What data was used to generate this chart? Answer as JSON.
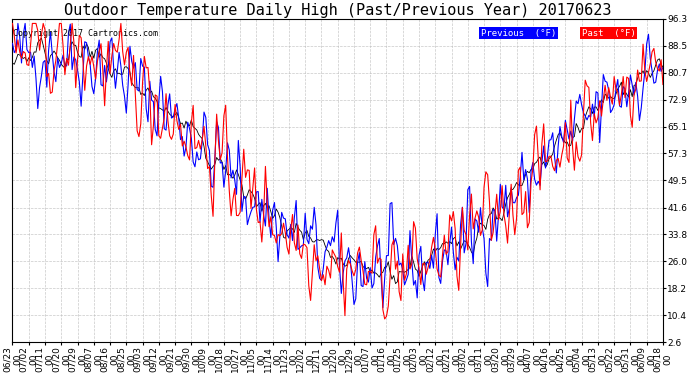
{
  "title": "Outdoor Temperature Daily High (Past/Previous Year) 20170623",
  "copyright": "Copyright 2017 Cartronics.com",
  "legend_labels": [
    "Previous  (°F)",
    "Past  (°F)"
  ],
  "legend_bg_colors": [
    "blue",
    "red"
  ],
  "legend_text_color": "white",
  "yticks": [
    2.6,
    10.4,
    18.2,
    26.0,
    33.8,
    41.6,
    49.5,
    57.3,
    65.1,
    72.9,
    80.7,
    88.5,
    96.3
  ],
  "ylim": [
    2.6,
    96.3
  ],
  "background_color": "#ffffff",
  "plot_bg_color": "#ffffff",
  "grid_color": "#bbbbbb",
  "line_color_prev": "blue",
  "line_color_past": "red",
  "line_color_black": "black",
  "title_fontsize": 11,
  "tick_fontsize": 6.5,
  "copyright_fontsize": 6,
  "x_labels": [
    "06/23",
    "07/02",
    "07/11",
    "07/20",
    "07/29",
    "08/07",
    "08/16",
    "08/25",
    "09/03",
    "09/12",
    "09/21",
    "09/30",
    "10/09",
    "10/18",
    "10/27",
    "11/05",
    "11/14",
    "11/23",
    "12/02",
    "12/11",
    "12/20",
    "12/29",
    "01/07",
    "01/16",
    "01/25",
    "02/03",
    "02/12",
    "02/21",
    "03/02",
    "03/11",
    "03/20",
    "03/29",
    "04/07",
    "04/16",
    "04/25",
    "05/04",
    "05/13",
    "05/22",
    "05/31",
    "06/09",
    "06/18"
  ],
  "x_labels_bottom": [
    "00",
    "00",
    "00",
    "00",
    "00",
    "00",
    "00",
    "00",
    "00",
    "00",
    "00",
    "00",
    "00",
    "00",
    "00",
    "00",
    "00",
    "00",
    "00",
    "00",
    "00",
    "00",
    "00",
    "00",
    "00",
    "00",
    "00",
    "00",
    "00",
    "00",
    "00",
    "00",
    "00",
    "00",
    "00",
    "00",
    "00",
    "00",
    "00",
    "00",
    "00"
  ]
}
